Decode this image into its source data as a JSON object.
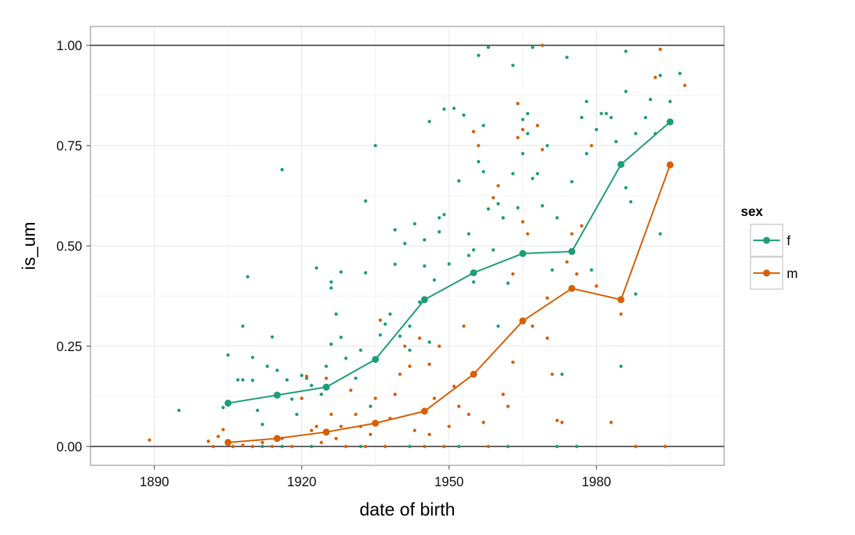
{
  "chart_data": {
    "type": "scatter",
    "xlabel": "date of birth",
    "ylabel": "is_um",
    "xlim": [
      1877,
      2006
    ],
    "ylim": [
      -0.047,
      1.047
    ],
    "x_ticks": [
      1890,
      1920,
      1950,
      1980
    ],
    "x_tick_labels": [
      "1890",
      "1920",
      "1950",
      "1980"
    ],
    "y_ticks": [
      0,
      0.25,
      0.5,
      0.75,
      1
    ],
    "y_tick_labels": [
      "0.00",
      "0.25",
      "0.50",
      "0.75",
      "1.00"
    ],
    "grid": true,
    "reference_lines_y": [
      0,
      1
    ],
    "legend": {
      "title": "sex",
      "position": "right",
      "entries": [
        {
          "label": "f",
          "color": "#1b9e77"
        },
        {
          "label": "m",
          "color": "#d95f02"
        }
      ]
    },
    "series": [
      {
        "name": "f",
        "color": "#1b9e77",
        "line": [
          [
            1905,
            0.108
          ],
          [
            1915,
            0.128
          ],
          [
            1925,
            0.148
          ],
          [
            1935,
            0.217
          ],
          [
            1945,
            0.366
          ],
          [
            1955,
            0.433
          ],
          [
            1965,
            0.481
          ],
          [
            1975,
            0.486
          ],
          [
            1985,
            0.703
          ],
          [
            1995,
            0.809
          ]
        ],
        "points": [
          [
            1895,
            0.09
          ],
          [
            1905,
            0.228
          ],
          [
            1904,
            0.097
          ],
          [
            1907,
            0.166
          ],
          [
            1908,
            0.166
          ],
          [
            1908,
            0.3
          ],
          [
            1909,
            0.423
          ],
          [
            1910,
            0.222
          ],
          [
            1910,
            0.165
          ],
          [
            1911,
            0.09
          ],
          [
            1912,
            0.055
          ],
          [
            1913,
            0.2
          ],
          [
            1914,
            0.273
          ],
          [
            1915,
            0.19
          ],
          [
            1916,
            0.69
          ],
          [
            1917,
            0.166
          ],
          [
            1918,
            0.118
          ],
          [
            1919,
            0.08
          ],
          [
            1920,
            0.177
          ],
          [
            1921,
            0.17
          ],
          [
            1922,
            0.152
          ],
          [
            1923,
            0.445
          ],
          [
            1924,
            0.13
          ],
          [
            1925,
            0.2
          ],
          [
            1926,
            0.41
          ],
          [
            1926,
            0.395
          ],
          [
            1926,
            0.255
          ],
          [
            1927,
            0.33
          ],
          [
            1928,
            0.272
          ],
          [
            1928,
            0.435
          ],
          [
            1929,
            0.22
          ],
          [
            1931,
            0.17
          ],
          [
            1932,
            0.24
          ],
          [
            1933,
            0.612
          ],
          [
            1933,
            0.433
          ],
          [
            1934,
            0.1
          ],
          [
            1935,
            0.75
          ],
          [
            1936,
            0.278
          ],
          [
            1937,
            0.305
          ],
          [
            1938,
            0.33
          ],
          [
            1939,
            0.54
          ],
          [
            1939,
            0.454
          ],
          [
            1940,
            0.275
          ],
          [
            1941,
            0.506
          ],
          [
            1942,
            0.3
          ],
          [
            1942,
            0.24
          ],
          [
            1943,
            0.555
          ],
          [
            1944,
            0.36
          ],
          [
            1945,
            0.45
          ],
          [
            1945,
            0.515
          ],
          [
            1946,
            0.81
          ],
          [
            1946,
            0.26
          ],
          [
            1947,
            0.415
          ],
          [
            1948,
            0.57
          ],
          [
            1948,
            0.535
          ],
          [
            1949,
            0.578
          ],
          [
            1949,
            0.841
          ],
          [
            1950,
            0.455
          ],
          [
            1951,
            0.843
          ],
          [
            1952,
            0.662
          ],
          [
            1953,
            0.826
          ],
          [
            1954,
            0.53
          ],
          [
            1954,
            0.476
          ],
          [
            1955,
            0.49
          ],
          [
            1955,
            0.41
          ],
          [
            1956,
            0.975
          ],
          [
            1956,
            0.71
          ],
          [
            1957,
            0.8
          ],
          [
            1957,
            0.685
          ],
          [
            1958,
            0.592
          ],
          [
            1958,
            0.995
          ],
          [
            1959,
            0.49
          ],
          [
            1960,
            0.3
          ],
          [
            1960,
            0.605
          ],
          [
            1961,
            0.57
          ],
          [
            1962,
            0.407
          ],
          [
            1963,
            0.95
          ],
          [
            1963,
            0.68
          ],
          [
            1964,
            0.595
          ],
          [
            1965,
            0.815
          ],
          [
            1965,
            0.73
          ],
          [
            1966,
            0.83
          ],
          [
            1966,
            0.78
          ],
          [
            1967,
            0.668
          ],
          [
            1967,
            0.995
          ],
          [
            1968,
            0.68
          ],
          [
            1969,
            0.6
          ],
          [
            1970,
            0.75
          ],
          [
            1971,
            0.44
          ],
          [
            1972,
            0.57
          ],
          [
            1973,
            0.18
          ],
          [
            1974,
            0.97
          ],
          [
            1975,
            0.66
          ],
          [
            1977,
            0.82
          ],
          [
            1978,
            0.86
          ],
          [
            1978,
            0.73
          ],
          [
            1979,
            0.44
          ],
          [
            1980,
            0.79
          ],
          [
            1981,
            0.83
          ],
          [
            1982,
            0.83
          ],
          [
            1983,
            0.82
          ],
          [
            1984,
            0.76
          ],
          [
            1985,
            0.2
          ],
          [
            1986,
            0.985
          ],
          [
            1986,
            0.885
          ],
          [
            1986,
            0.645
          ],
          [
            1987,
            0.61
          ],
          [
            1988,
            0.78
          ],
          [
            1988,
            0.38
          ],
          [
            1990,
            0.82
          ],
          [
            1991,
            0.865
          ],
          [
            1992,
            0.78
          ],
          [
            1993,
            0.925
          ],
          [
            1993,
            0.53
          ],
          [
            1995,
            0.86
          ],
          [
            1997,
            0.93
          ],
          [
            1912,
            0.0
          ],
          [
            1916,
            0.0
          ],
          [
            1922,
            0.0
          ],
          [
            1932,
            0.0
          ],
          [
            1942,
            0.0
          ],
          [
            1952,
            0.0
          ],
          [
            1962,
            0.0
          ],
          [
            1972,
            0.0
          ],
          [
            1976,
            0.0
          ]
        ]
      },
      {
        "name": "m",
        "color": "#d95f02",
        "line": [
          [
            1905,
            0.01
          ],
          [
            1915,
            0.02
          ],
          [
            1925,
            0.036
          ],
          [
            1935,
            0.058
          ],
          [
            1945,
            0.088
          ],
          [
            1955,
            0.18
          ],
          [
            1965,
            0.313
          ],
          [
            1975,
            0.394
          ],
          [
            1985,
            0.366
          ],
          [
            1995,
            0.702
          ]
        ],
        "points": [
          [
            1889,
            0.016
          ],
          [
            1901,
            0.013
          ],
          [
            1902,
            0.0
          ],
          [
            1903,
            0.025
          ],
          [
            1904,
            0.042
          ],
          [
            1906,
            0.0
          ],
          [
            1908,
            0.003
          ],
          [
            1910,
            0.0
          ],
          [
            1912,
            0.01
          ],
          [
            1914,
            0.0
          ],
          [
            1916,
            0.02
          ],
          [
            1918,
            0.0
          ],
          [
            1920,
            0.12
          ],
          [
            1921,
            0.175
          ],
          [
            1922,
            0.04
          ],
          [
            1923,
            0.05
          ],
          [
            1924,
            0.01
          ],
          [
            1925,
            0.17
          ],
          [
            1926,
            0.08
          ],
          [
            1927,
            0.02
          ],
          [
            1928,
            0.05
          ],
          [
            1929,
            0.0
          ],
          [
            1930,
            0.14
          ],
          [
            1931,
            0.08
          ],
          [
            1932,
            0.05
          ],
          [
            1933,
            0.0
          ],
          [
            1934,
            0.03
          ],
          [
            1935,
            0.12
          ],
          [
            1936,
            0.315
          ],
          [
            1937,
            0.0
          ],
          [
            1938,
            0.07
          ],
          [
            1939,
            0.13
          ],
          [
            1940,
            0.18
          ],
          [
            1941,
            0.25
          ],
          [
            1942,
            0.2
          ],
          [
            1943,
            0.04
          ],
          [
            1944,
            0.27
          ],
          [
            1945,
            0.0
          ],
          [
            1946,
            0.205
          ],
          [
            1947,
            0.12
          ],
          [
            1948,
            0.25
          ],
          [
            1949,
            0.0
          ],
          [
            1950,
            0.05
          ],
          [
            1951,
            0.15
          ],
          [
            1952,
            0.1
          ],
          [
            1953,
            0.3
          ],
          [
            1954,
            0.08
          ],
          [
            1955,
            0.785
          ],
          [
            1956,
            0.75
          ],
          [
            1957,
            0.06
          ],
          [
            1958,
            0.0
          ],
          [
            1959,
            0.62
          ],
          [
            1960,
            0.65
          ],
          [
            1961,
            0.13
          ],
          [
            1962,
            0.1
          ],
          [
            1963,
            0.21
          ],
          [
            1963,
            0.43
          ],
          [
            1964,
            0.855
          ],
          [
            1964,
            0.77
          ],
          [
            1965,
            0.79
          ],
          [
            1965,
            0.56
          ],
          [
            1966,
            0.53
          ],
          [
            1967,
            0.3
          ],
          [
            1968,
            0.8
          ],
          [
            1969,
            0.74
          ],
          [
            1970,
            0.37
          ],
          [
            1970,
            0.27
          ],
          [
            1971,
            0.18
          ],
          [
            1972,
            0.065
          ],
          [
            1973,
            0.06
          ],
          [
            1974,
            0.46
          ],
          [
            1975,
            0.53
          ],
          [
            1976,
            0.43
          ],
          [
            1977,
            0.55
          ],
          [
            1979,
            0.75
          ],
          [
            1980,
            0.4
          ],
          [
            1983,
            0.06
          ],
          [
            1985,
            0.33
          ],
          [
            1988,
            0.0
          ],
          [
            1992,
            0.92
          ],
          [
            1993,
            0.99
          ],
          [
            1994,
            0.0
          ],
          [
            1998,
            0.9
          ],
          [
            1969,
            1.0
          ],
          [
            1946,
            0.03
          ]
        ]
      }
    ]
  }
}
